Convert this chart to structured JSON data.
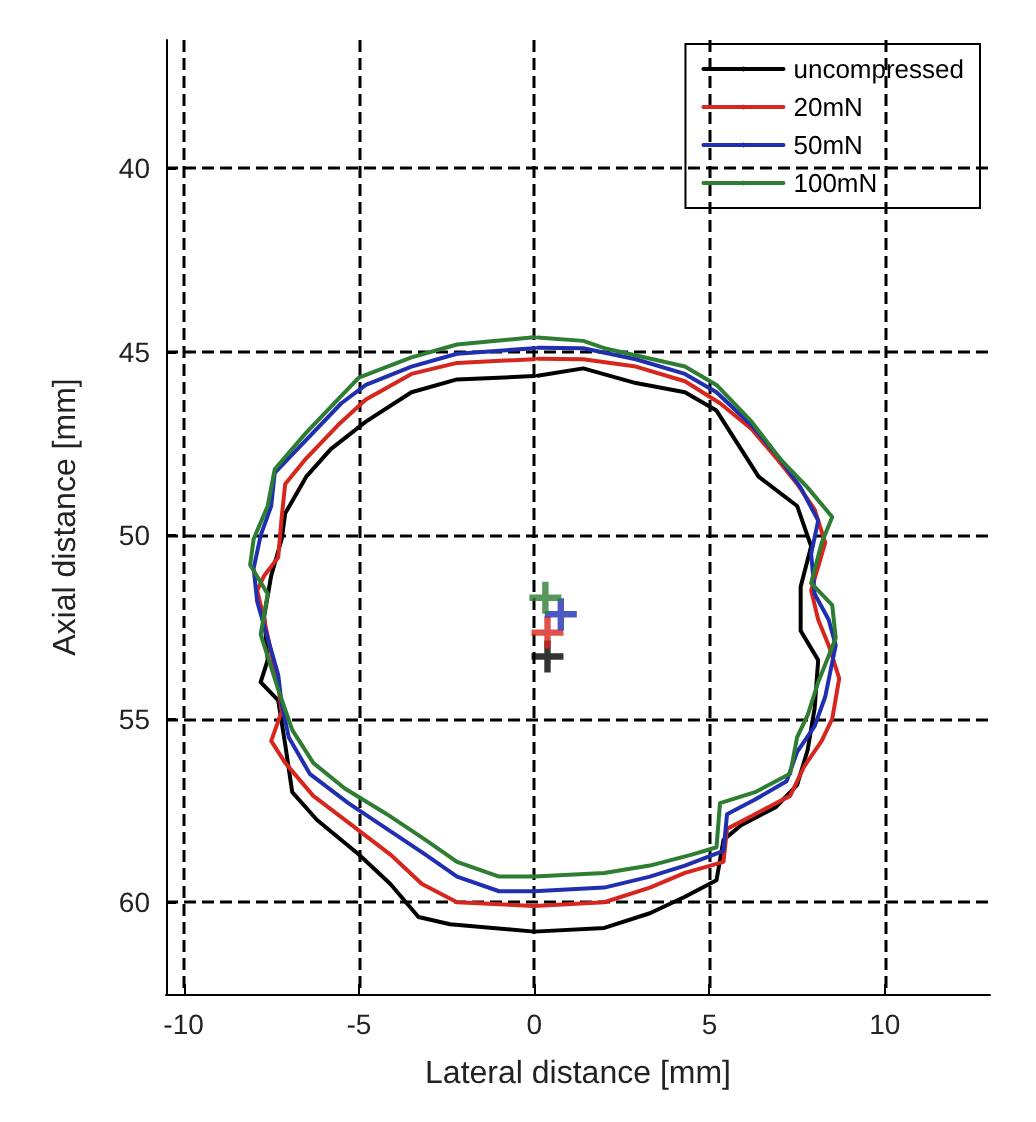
{
  "chart_data": {
    "type": "line",
    "xlabel": "Lateral distance [mm]",
    "ylabel": "Axial distance [mm]",
    "xlim": [
      -10.5,
      13
    ],
    "xticks": [
      -10,
      -5,
      0,
      5,
      10
    ],
    "ylim": [
      62.5,
      36.5
    ],
    "yticks": [
      40,
      45,
      50,
      55,
      60
    ],
    "grid": true,
    "legend": "top right",
    "marker": "none",
    "line_style": "solid",
    "series": [
      {
        "name": "uncompressed",
        "color": "#000000",
        "x": [
          0,
          -2.2,
          -3.5,
          -4.8,
          -5.8,
          -6.5,
          -7.1,
          -7.2,
          -7.5,
          -7.7,
          -7.6,
          -7.8,
          -7.3,
          -7.1,
          -6.9,
          -6.2,
          -5.0,
          -4.1,
          -3.3,
          -2.4,
          0,
          2.0,
          3.3,
          4.3,
          5.2,
          5.4,
          5.9,
          6.9,
          7.5,
          7.8,
          8.0,
          8.1,
          7.6,
          7.6,
          7.9,
          7.5,
          6.4,
          5.8,
          5.2,
          4.3,
          2.9,
          1.4,
          0.1
        ],
        "values": [
          45.66,
          45.75,
          46.1,
          46.9,
          47.65,
          48.4,
          49.4,
          50.1,
          51.1,
          52.2,
          53.4,
          54.0,
          54.5,
          55.7,
          57.0,
          57.75,
          58.7,
          59.5,
          60.4,
          60.6,
          60.8,
          60.7,
          60.3,
          59.85,
          59.4,
          58.3,
          57.9,
          57.4,
          56.8,
          55.85,
          54.7,
          53.4,
          52.6,
          51.4,
          50.3,
          49.2,
          48.4,
          47.5,
          46.6,
          46.1,
          45.85,
          45.45,
          45.65
        ]
      },
      {
        "name": "20mN",
        "color": "#d7261e",
        "x": [
          0,
          -2.2,
          -3.5,
          -4.8,
          -5.6,
          -6.5,
          -7.1,
          -7.2,
          -7.3,
          -7.7,
          -7.9,
          -7.7,
          -7.5,
          -7.3,
          -7.2,
          -7.5,
          -7.1,
          -6.3,
          -5.2,
          -4.1,
          -3.2,
          -2.2,
          0,
          2.0,
          3.3,
          4.3,
          5.4,
          5.5,
          6.3,
          7.3,
          7.7,
          8.2,
          8.5,
          8.7,
          8.4,
          8.1,
          7.9,
          8.3,
          8.0,
          7.5,
          7.0,
          6.2,
          5.3,
          4.3,
          2.9,
          1.4,
          0.1
        ],
        "values": [
          45.2,
          45.3,
          45.6,
          46.3,
          47.0,
          47.9,
          48.6,
          49.5,
          50.6,
          51.1,
          51.5,
          52.3,
          53.2,
          54.1,
          54.8,
          55.6,
          56.2,
          57.1,
          57.9,
          58.7,
          59.5,
          60.0,
          60.1,
          60.0,
          59.6,
          59.2,
          58.9,
          58.0,
          57.6,
          57.1,
          56.3,
          55.6,
          55.0,
          53.9,
          53.0,
          52.3,
          51.5,
          50.2,
          49.3,
          48.6,
          48.0,
          47.1,
          46.4,
          45.8,
          45.4,
          45.2,
          45.19
        ]
      },
      {
        "name": "50mN",
        "color": "#1f2fb0",
        "x": [
          0,
          -2.2,
          -3.5,
          -4.8,
          -5.5,
          -6.5,
          -7.4,
          -7.5,
          -7.8,
          -8.0,
          -7.9,
          -7.6,
          -7.3,
          -7.2,
          -7.0,
          -6.4,
          -5.3,
          -4.2,
          -3.1,
          -2.2,
          -1.0,
          0,
          2.0,
          3.3,
          4.3,
          5.4,
          5.5,
          6.3,
          7.2,
          7.5,
          8.0,
          8.3,
          8.6,
          8.4,
          8.0,
          7.9,
          8.1,
          7.6,
          7.0,
          6.2,
          5.2,
          4.3,
          2.9,
          1.4,
          0.1
        ],
        "values": [
          44.9,
          45.05,
          45.4,
          45.9,
          46.4,
          47.4,
          48.3,
          49.2,
          50.0,
          50.9,
          51.8,
          52.8,
          53.8,
          54.6,
          55.5,
          56.5,
          57.3,
          58.0,
          58.7,
          59.3,
          59.7,
          59.7,
          59.6,
          59.3,
          59.0,
          58.6,
          57.6,
          57.2,
          56.7,
          55.9,
          55.2,
          54.4,
          53.0,
          52.3,
          51.6,
          50.5,
          49.6,
          48.7,
          47.9,
          47.0,
          46.1,
          45.6,
          45.2,
          44.9,
          44.89
        ]
      },
      {
        "name": "100mN",
        "color": "#2e7d32",
        "x": [
          0,
          -2.2,
          -3.5,
          -5.0,
          -5.5,
          -6.5,
          -7.4,
          -7.6,
          -8.0,
          -8.1,
          -7.6,
          -7.8,
          -7.6,
          -7.3,
          -6.9,
          -6.3,
          -5.4,
          -4.2,
          -3.1,
          -2.2,
          -1.0,
          0,
          2.0,
          3.3,
          4.5,
          5.2,
          5.3,
          6.3,
          7.3,
          7.5,
          7.8,
          8.1,
          8.6,
          8.5,
          7.9,
          8.2,
          8.5,
          7.8,
          7.0,
          6.2,
          5.2,
          4.3,
          2.0,
          1.4,
          0.1
        ],
        "values": [
          44.6,
          44.8,
          45.15,
          45.7,
          46.2,
          47.2,
          48.2,
          49.2,
          50.1,
          50.8,
          51.6,
          52.7,
          53.3,
          54.2,
          55.3,
          56.2,
          56.9,
          57.6,
          58.3,
          58.9,
          59.3,
          59.3,
          59.2,
          59.0,
          58.7,
          58.5,
          57.3,
          57.0,
          56.5,
          55.5,
          54.9,
          54.0,
          52.8,
          51.9,
          51.3,
          50.2,
          49.5,
          48.7,
          47.9,
          46.9,
          45.9,
          45.4,
          44.9,
          44.7,
          44.61
        ]
      },
      {
        "type": "scatter",
        "marker": "cross",
        "color": "#000000",
        "x": [
          0.38
        ],
        "values": [
          53.3
        ]
      },
      {
        "type": "scatter",
        "marker": "cross",
        "color": "#d7261e",
        "x": [
          0.38
        ],
        "values": [
          52.65
        ]
      },
      {
        "type": "scatter",
        "marker": "cross",
        "color": "#1f2fb0",
        "x": [
          0.76
        ],
        "values": [
          52.15
        ]
      },
      {
        "type": "scatter",
        "marker": "cross",
        "color": "#2e7d32",
        "x": [
          0.32
        ],
        "values": [
          51.7
        ]
      }
    ]
  }
}
